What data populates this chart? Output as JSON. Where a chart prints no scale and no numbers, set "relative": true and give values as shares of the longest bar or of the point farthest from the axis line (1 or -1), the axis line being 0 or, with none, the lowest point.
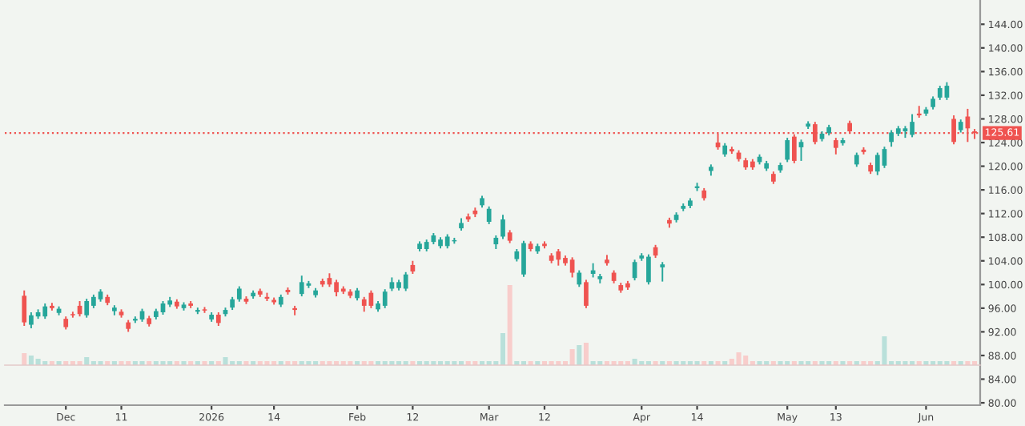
{
  "chart_data": [
    {
      "type": "candlestick",
      "categories": [
        null,
        null,
        null,
        null,
        null,
        null,
        "Dec",
        null,
        null,
        null,
        null,
        null,
        null,
        null,
        "11",
        null,
        null,
        null,
        null,
        null,
        null,
        null,
        null,
        null,
        null,
        null,
        null,
        "2026",
        null,
        null,
        null,
        null,
        null,
        null,
        null,
        null,
        "14",
        null,
        null,
        null,
        null,
        null,
        null,
        null,
        null,
        null,
        null,
        null,
        "Feb",
        null,
        null,
        null,
        null,
        null,
        null,
        null,
        "12",
        null,
        null,
        null,
        null,
        null,
        null,
        null,
        null,
        null,
        null,
        "Mar",
        null,
        null,
        null,
        null,
        null,
        null,
        null,
        "12",
        null,
        null,
        null,
        null,
        null,
        null,
        null,
        null,
        null,
        null,
        null,
        null,
        null,
        "Apr",
        null,
        null,
        null,
        null,
        null,
        null,
        null,
        "14",
        null,
        null,
        null,
        null,
        null,
        null,
        null,
        null,
        null,
        null,
        null,
        null,
        "May",
        null,
        null,
        null,
        null,
        null,
        null,
        "13",
        null,
        null,
        null,
        null,
        null,
        null,
        null,
        null,
        null,
        null,
        null,
        null,
        "Jun",
        null,
        null,
        null,
        null,
        null,
        null,
        null
      ],
      "ohlc": [
        [
          98.1,
          99.0,
          93.0,
          93.6
        ],
        [
          93.2,
          95.3,
          92.6,
          94.8
        ],
        [
          94.6,
          95.8,
          94.2,
          95.3
        ],
        [
          94.6,
          96.8,
          94.2,
          96.3
        ],
        [
          96.4,
          96.9,
          95.6,
          96.0
        ],
        [
          95.2,
          96.3,
          94.8,
          95.9
        ],
        [
          94.2,
          94.6,
          92.4,
          92.8
        ],
        [
          95.0,
          95.4,
          94.4,
          94.8
        ],
        [
          96.4,
          97.2,
          94.6,
          95.0
        ],
        [
          94.8,
          97.6,
          94.4,
          97.2
        ],
        [
          96.4,
          98.3,
          96.0,
          97.9
        ],
        [
          97.5,
          99.2,
          97.1,
          98.8
        ],
        [
          97.9,
          98.3,
          96.5,
          96.9
        ],
        [
          95.5,
          96.5,
          94.8,
          96.1
        ],
        [
          95.4,
          95.8,
          94.4,
          94.8
        ],
        [
          93.6,
          94.0,
          92.0,
          92.5
        ],
        [
          93.9,
          94.6,
          93.5,
          94.2
        ],
        [
          94.1,
          95.9,
          93.7,
          95.5
        ],
        [
          94.3,
          94.7,
          92.9,
          93.3
        ],
        [
          94.5,
          95.9,
          94.1,
          95.5
        ],
        [
          95.3,
          97.2,
          94.9,
          96.8
        ],
        [
          96.6,
          97.9,
          96.2,
          97.3
        ],
        [
          97.1,
          97.5,
          95.9,
          96.3
        ],
        [
          96.0,
          97.0,
          95.6,
          96.6
        ],
        [
          96.8,
          97.2,
          96.0,
          96.4
        ],
        [
          95.4,
          96.1,
          95.0,
          95.7
        ],
        [
          95.8,
          96.2,
          95.2,
          95.6
        ],
        [
          94.1,
          95.3,
          93.7,
          94.9
        ],
        [
          94.9,
          95.3,
          93.0,
          93.5
        ],
        [
          95.0,
          96.1,
          94.6,
          95.7
        ],
        [
          96.1,
          97.9,
          95.7,
          97.5
        ],
        [
          97.5,
          99.7,
          97.1,
          99.3
        ],
        [
          97.6,
          98.0,
          96.7,
          97.1
        ],
        [
          98.0,
          99.0,
          97.6,
          98.6
        ],
        [
          98.9,
          99.3,
          97.9,
          98.3
        ],
        [
          97.9,
          98.6,
          97.2,
          97.6
        ],
        [
          97.4,
          97.8,
          96.6,
          97.0
        ],
        [
          96.6,
          98.3,
          96.2,
          97.9
        ],
        [
          99.1,
          99.5,
          98.3,
          98.7
        ],
        [
          96.0,
          96.4,
          94.8,
          95.7
        ],
        [
          98.4,
          101.5,
          98.0,
          100.4
        ],
        [
          99.8,
          100.6,
          99.4,
          100.2
        ],
        [
          98.2,
          99.4,
          97.8,
          99.0
        ],
        [
          100.6,
          101.0,
          99.6,
          100.0
        ],
        [
          101.1,
          101.9,
          99.6,
          100.0
        ],
        [
          100.4,
          100.8,
          98.0,
          98.7
        ],
        [
          99.3,
          99.7,
          98.4,
          98.8
        ],
        [
          98.8,
          99.2,
          97.7,
          98.1
        ],
        [
          97.7,
          99.4,
          97.3,
          99.0
        ],
        [
          97.5,
          97.9,
          95.4,
          96.4
        ],
        [
          98.6,
          99.0,
          96.0,
          96.4
        ],
        [
          95.8,
          97.2,
          95.4,
          96.8
        ],
        [
          96.4,
          99.2,
          96.0,
          98.8
        ],
        [
          99.3,
          101.2,
          98.9,
          100.4
        ],
        [
          99.4,
          100.8,
          99.0,
          100.4
        ],
        [
          99.3,
          102.1,
          98.9,
          101.7
        ],
        [
          103.3,
          104.0,
          101.8,
          102.2
        ],
        [
          106.0,
          107.3,
          105.6,
          106.9
        ],
        [
          106.0,
          107.6,
          105.6,
          107.2
        ],
        [
          107.2,
          108.7,
          106.8,
          108.3
        ],
        [
          106.5,
          108.0,
          106.1,
          107.6
        ],
        [
          106.5,
          108.5,
          106.1,
          108.1
        ],
        [
          107.3,
          107.9,
          106.9,
          107.5
        ],
        [
          109.5,
          111.2,
          109.1,
          110.4
        ],
        [
          111.5,
          112.0,
          110.6,
          111.0
        ],
        [
          112.5,
          113.0,
          111.4,
          111.9
        ],
        [
          113.4,
          115.0,
          113.0,
          114.6
        ],
        [
          110.6,
          113.2,
          110.2,
          112.8
        ],
        [
          106.8,
          108.3,
          106.0,
          107.9
        ],
        [
          108.1,
          111.8,
          107.7,
          111.0
        ],
        [
          108.8,
          109.2,
          107.0,
          107.4
        ],
        [
          104.3,
          106.0,
          103.9,
          105.6
        ],
        [
          101.7,
          107.4,
          101.3,
          107.0
        ],
        [
          106.9,
          107.3,
          105.6,
          106.0
        ],
        [
          105.6,
          106.9,
          105.2,
          106.5
        ],
        [
          106.9,
          107.3,
          106.1,
          106.5
        ],
        [
          104.9,
          105.3,
          103.6,
          104.0
        ],
        [
          105.6,
          106.0,
          103.2,
          104.2
        ],
        [
          104.5,
          104.9,
          103.2,
          103.6
        ],
        [
          104.2,
          104.6,
          101.2,
          102.0
        ],
        [
          100.0,
          102.4,
          99.6,
          102.0
        ],
        [
          100.4,
          100.8,
          96.0,
          96.4
        ],
        [
          101.8,
          103.6,
          101.2,
          102.4
        ],
        [
          100.9,
          101.8,
          100.2,
          101.4
        ],
        [
          104.2,
          105.0,
          103.2,
          103.6
        ],
        [
          102.0,
          102.4,
          100.2,
          100.6
        ],
        [
          99.9,
          100.3,
          98.6,
          99.0
        ],
        [
          100.2,
          100.6,
          99.1,
          99.5
        ],
        [
          101.1,
          104.2,
          100.7,
          103.8
        ],
        [
          104.4,
          105.3,
          104.0,
          104.9
        ],
        [
          100.4,
          105.1,
          100.0,
          104.7
        ],
        [
          106.3,
          106.7,
          104.5,
          104.9
        ],
        [
          102.9,
          103.8,
          100.5,
          103.4
        ],
        [
          110.9,
          111.3,
          109.6,
          110.3
        ],
        [
          110.9,
          112.2,
          110.5,
          111.8
        ],
        [
          112.8,
          113.7,
          112.4,
          113.3
        ],
        [
          113.3,
          114.6,
          112.9,
          114.2
        ],
        [
          116.3,
          117.2,
          115.8,
          116.6
        ],
        [
          115.9,
          116.3,
          114.2,
          114.6
        ],
        [
          119.2,
          120.3,
          118.4,
          119.9
        ],
        [
          124.0,
          125.5,
          122.8,
          123.2
        ],
        [
          122.0,
          123.9,
          121.6,
          123.5
        ],
        [
          122.9,
          123.3,
          122.1,
          122.5
        ],
        [
          122.3,
          122.7,
          120.8,
          121.2
        ],
        [
          121.0,
          121.4,
          119.4,
          119.8
        ],
        [
          120.8,
          121.2,
          119.4,
          119.8
        ],
        [
          120.7,
          122.0,
          120.3,
          121.6
        ],
        [
          119.6,
          120.9,
          119.2,
          120.5
        ],
        [
          118.7,
          119.1,
          117.0,
          117.4
        ],
        [
          119.3,
          120.6,
          118.9,
          120.2
        ],
        [
          121.1,
          124.8,
          120.7,
          124.4
        ],
        [
          125.0,
          125.4,
          120.5,
          120.9
        ],
        [
          123.2,
          124.5,
          120.9,
          124.1
        ],
        [
          126.7,
          127.6,
          126.3,
          127.2
        ],
        [
          127.1,
          127.5,
          123.7,
          124.1
        ],
        [
          124.6,
          125.9,
          124.2,
          125.5
        ],
        [
          125.6,
          127.0,
          125.2,
          126.6
        ],
        [
          124.4,
          124.8,
          122.0,
          123.1
        ],
        [
          123.9,
          124.8,
          123.5,
          124.4
        ],
        [
          127.3,
          127.7,
          125.5,
          125.9
        ],
        [
          120.3,
          122.3,
          119.9,
          121.9
        ],
        [
          122.8,
          123.2,
          122.0,
          122.4
        ],
        [
          120.2,
          120.6,
          118.7,
          119.1
        ],
        [
          119.1,
          122.3,
          118.5,
          121.9
        ],
        [
          120.1,
          123.3,
          119.7,
          122.9
        ],
        [
          124.1,
          126.1,
          123.3,
          125.7
        ],
        [
          125.5,
          126.8,
          125.1,
          126.4
        ],
        [
          125.9,
          126.8,
          124.8,
          126.4
        ],
        [
          125.3,
          128.8,
          124.9,
          127.5
        ],
        [
          128.9,
          130.2,
          128.2,
          128.6
        ],
        [
          128.9,
          130.0,
          128.5,
          129.6
        ],
        [
          130.0,
          131.8,
          129.6,
          131.4
        ],
        [
          131.6,
          133.6,
          131.2,
          133.2
        ],
        [
          131.6,
          134.2,
          131.2,
          133.6
        ],
        [
          128.0,
          128.6,
          123.7,
          124.1
        ],
        [
          126.1,
          127.9,
          125.7,
          127.5
        ],
        [
          128.4,
          129.7,
          124.1,
          126.4
        ],
        [
          125.9,
          126.3,
          124.6,
          125.61
        ]
      ],
      "colors": [
        "#ef5350",
        "#26a69a",
        "#26a69a",
        "#26a69a",
        "#ef5350",
        "#26a69a",
        "#ef5350",
        "#ef5350",
        "#ef5350",
        "#26a69a",
        "#26a69a",
        "#26a69a",
        "#ef5350",
        "#26a69a",
        "#ef5350",
        "#ef5350",
        "#26a69a",
        "#26a69a",
        "#ef5350",
        "#26a69a",
        "#26a69a",
        "#26a69a",
        "#ef5350",
        "#26a69a",
        "#ef5350",
        "#26a69a",
        "#ef5350",
        "#26a69a",
        "#ef5350",
        "#26a69a",
        "#26a69a",
        "#26a69a",
        "#ef5350",
        "#26a69a",
        "#ef5350",
        "#ef5350",
        "#ef5350",
        "#26a69a",
        "#ef5350",
        "#ef5350",
        "#26a69a",
        "#26a69a",
        "#26a69a",
        "#ef5350",
        "#ef5350",
        "#ef5350",
        "#ef5350",
        "#ef5350",
        "#26a69a",
        "#ef5350",
        "#ef5350",
        "#26a69a",
        "#26a69a",
        "#26a69a",
        "#26a69a",
        "#26a69a",
        "#ef5350",
        "#26a69a",
        "#26a69a",
        "#26a69a",
        "#26a69a",
        "#26a69a",
        "#26a69a",
        "#26a69a",
        "#ef5350",
        "#ef5350",
        "#26a69a",
        "#26a69a",
        "#26a69a",
        "#26a69a",
        "#ef5350",
        "#26a69a",
        "#26a69a",
        "#ef5350",
        "#26a69a",
        "#ef5350",
        "#ef5350",
        "#ef5350",
        "#ef5350",
        "#ef5350",
        "#26a69a",
        "#ef5350",
        "#26a69a",
        "#26a69a",
        "#ef5350",
        "#ef5350",
        "#ef5350",
        "#ef5350",
        "#26a69a",
        "#26a69a",
        "#26a69a",
        "#ef5350",
        "#26a69a",
        "#ef5350",
        "#26a69a",
        "#26a69a",
        "#26a69a",
        "#26a69a",
        "#ef5350",
        "#26a69a",
        "#ef5350",
        "#26a69a",
        "#ef5350",
        "#ef5350",
        "#ef5350",
        "#ef5350",
        "#26a69a",
        "#26a69a",
        "#ef5350",
        "#26a69a",
        "#26a69a",
        "#ef5350",
        "#26a69a",
        "#26a69a",
        "#ef5350",
        "#26a69a",
        "#26a69a",
        "#ef5350",
        "#26a69a",
        "#ef5350",
        "#26a69a",
        "#ef5350",
        "#ef5350",
        "#26a69a",
        "#26a69a",
        "#26a69a",
        "#26a69a",
        "#26a69a",
        "#26a69a",
        "#ef5350",
        "#26a69a",
        "#26a69a",
        "#26a69a",
        "#26a69a",
        "#ef5350",
        "#26a69a",
        "#ef5350",
        "#ef5350"
      ],
      "ylim": [
        79.6,
        148.1
      ],
      "yticks": [
        {
          "value": 80,
          "label": "80.00"
        },
        {
          "value": 84,
          "label": "84.00"
        },
        {
          "value": 88,
          "label": "88.00"
        },
        {
          "value": 92,
          "label": "92.00"
        },
        {
          "value": 96,
          "label": "96.00"
        },
        {
          "value": 100,
          "label": "100.00"
        },
        {
          "value": 104,
          "label": "104.00"
        },
        {
          "value": 108,
          "label": "108.00"
        },
        {
          "value": 112,
          "label": "112.00"
        },
        {
          "value": 116,
          "label": "116.00"
        },
        {
          "value": 120,
          "label": "120.00"
        },
        {
          "value": 124,
          "label": "124.00"
        },
        {
          "value": 128,
          "label": "128.00"
        },
        {
          "value": 132,
          "label": "132.00"
        },
        {
          "value": 136,
          "label": "136.00"
        },
        {
          "value": 140,
          "label": "140.00"
        },
        {
          "value": 144,
          "label": "144.00"
        }
      ],
      "ref_lines": [
        {
          "axis": "y",
          "value": 125.61,
          "label": "125.61",
          "color": "#ef5350",
          "line_style": "dotted"
        }
      ]
    },
    {
      "type": "bar",
      "relative": true,
      "categories": [
        null,
        null,
        null,
        null,
        null,
        null,
        null,
        null,
        null,
        null,
        null,
        null,
        null,
        null,
        null,
        null,
        null,
        null,
        null,
        null,
        null,
        null,
        null,
        null,
        null,
        null,
        null,
        null,
        null,
        null,
        null,
        null,
        null,
        null,
        null,
        null,
        null,
        null,
        null,
        null,
        null,
        null,
        null,
        null,
        null,
        null,
        null,
        null,
        null,
        null,
        null,
        null,
        null,
        null,
        null,
        null,
        null,
        null,
        null,
        null,
        null,
        null,
        null,
        null,
        null,
        null,
        null,
        null,
        null,
        null,
        null,
        null,
        null,
        null,
        null,
        null,
        null,
        null,
        null,
        null,
        null,
        null,
        null,
        null,
        null,
        null,
        null,
        null,
        null,
        null,
        null,
        null,
        null,
        null,
        null,
        null,
        null,
        null,
        null,
        null,
        null,
        null,
        null,
        null,
        null,
        null,
        null,
        null,
        null,
        null,
        null,
        null,
        null,
        null,
        null,
        null,
        null,
        null,
        null,
        null,
        null,
        null,
        null,
        null,
        null,
        null,
        null,
        null,
        null,
        null,
        null,
        null,
        null,
        null,
        null,
        null,
        null,
        null
      ],
      "values": [
        0.15,
        0.12,
        0.08,
        0.05,
        0.05,
        0.05,
        0.05,
        0.05,
        0.05,
        0.1,
        0.05,
        0.05,
        0.05,
        0.05,
        0.05,
        0.05,
        0.05,
        0.05,
        0.05,
        0.05,
        0.05,
        0.05,
        0.05,
        0.05,
        0.05,
        0.05,
        0.05,
        0.05,
        0.05,
        0.1,
        0.05,
        0.05,
        0.05,
        0.05,
        0.05,
        0.05,
        0.05,
        0.05,
        0.05,
        0.05,
        0.05,
        0.05,
        0.05,
        0.05,
        0.05,
        0.05,
        0.05,
        0.05,
        0.05,
        0.05,
        0.05,
        0.05,
        0.05,
        0.05,
        0.05,
        0.05,
        0.05,
        0.05,
        0.05,
        0.05,
        0.05,
        0.05,
        0.05,
        0.05,
        0.05,
        0.05,
        0.05,
        0.05,
        0.05,
        0.4,
        1.0,
        0.05,
        0.05,
        0.05,
        0.05,
        0.05,
        0.05,
        0.05,
        0.05,
        0.2,
        0.25,
        0.28,
        0.05,
        0.05,
        0.05,
        0.05,
        0.05,
        0.05,
        0.08,
        0.05,
        0.05,
        0.05,
        0.05,
        0.05,
        0.05,
        0.05,
        0.05,
        0.05,
        0.05,
        0.05,
        0.05,
        0.05,
        0.08,
        0.16,
        0.12,
        0.05,
        0.05,
        0.05,
        0.05,
        0.05,
        0.05,
        0.05,
        0.05,
        0.05,
        0.05,
        0.05,
        0.05,
        0.05,
        0.05,
        0.05,
        0.05,
        0.05,
        0.05,
        0.05,
        0.36,
        0.05,
        0.05,
        0.05,
        0.05,
        0.05,
        0.05,
        0.05,
        0.05,
        0.05,
        0.05,
        0.05,
        0.05,
        0.05
      ],
      "colors": [
        "#f8cdcb",
        "#b9e0da",
        "#b9e0da",
        "#b9e0da",
        "#f8cdcb",
        "#b9e0da",
        "#f8cdcb",
        "#f8cdcb",
        "#f8cdcb",
        "#b9e0da",
        "#b9e0da",
        "#b9e0da",
        "#f8cdcb",
        "#b9e0da",
        "#f8cdcb",
        "#f8cdcb",
        "#b9e0da",
        "#b9e0da",
        "#f8cdcb",
        "#b9e0da",
        "#b9e0da",
        "#b9e0da",
        "#f8cdcb",
        "#b9e0da",
        "#f8cdcb",
        "#b9e0da",
        "#f8cdcb",
        "#b9e0da",
        "#f8cdcb",
        "#b9e0da",
        "#b9e0da",
        "#b9e0da",
        "#f8cdcb",
        "#b9e0da",
        "#f8cdcb",
        "#f8cdcb",
        "#f8cdcb",
        "#b9e0da",
        "#f8cdcb",
        "#f8cdcb",
        "#b9e0da",
        "#b9e0da",
        "#b9e0da",
        "#f8cdcb",
        "#f8cdcb",
        "#f8cdcb",
        "#f8cdcb",
        "#f8cdcb",
        "#b9e0da",
        "#f8cdcb",
        "#f8cdcb",
        "#b9e0da",
        "#b9e0da",
        "#b9e0da",
        "#b9e0da",
        "#b9e0da",
        "#f8cdcb",
        "#b9e0da",
        "#b9e0da",
        "#b9e0da",
        "#b9e0da",
        "#b9e0da",
        "#b9e0da",
        "#b9e0da",
        "#f8cdcb",
        "#f8cdcb",
        "#b9e0da",
        "#b9e0da",
        "#b9e0da",
        "#b9e0da",
        "#f8cdcb",
        "#b9e0da",
        "#b9e0da",
        "#f8cdcb",
        "#b9e0da",
        "#f8cdcb",
        "#f8cdcb",
        "#f8cdcb",
        "#f8cdcb",
        "#f8cdcb",
        "#b9e0da",
        "#f8cdcb",
        "#b9e0da",
        "#b9e0da",
        "#f8cdcb",
        "#f8cdcb",
        "#f8cdcb",
        "#f8cdcb",
        "#b9e0da",
        "#b9e0da",
        "#b9e0da",
        "#f8cdcb",
        "#b9e0da",
        "#f8cdcb",
        "#b9e0da",
        "#b9e0da",
        "#b9e0da",
        "#b9e0da",
        "#f8cdcb",
        "#b9e0da",
        "#f8cdcb",
        "#b9e0da",
        "#f8cdcb",
        "#f8cdcb",
        "#f8cdcb",
        "#f8cdcb",
        "#b9e0da",
        "#b9e0da",
        "#f8cdcb",
        "#b9e0da",
        "#b9e0da",
        "#f8cdcb",
        "#b9e0da",
        "#b9e0da",
        "#f8cdcb",
        "#b9e0da",
        "#b9e0da",
        "#f8cdcb",
        "#b9e0da",
        "#f8cdcb",
        "#b9e0da",
        "#f8cdcb",
        "#f8cdcb",
        "#b9e0da",
        "#b9e0da",
        "#b9e0da",
        "#b9e0da",
        "#b9e0da",
        "#b9e0da",
        "#f8cdcb",
        "#b9e0da",
        "#b9e0da",
        "#b9e0da",
        "#b9e0da",
        "#f8cdcb",
        "#b9e0da",
        "#f8cdcb",
        "#f8cdcb"
      ]
    }
  ]
}
